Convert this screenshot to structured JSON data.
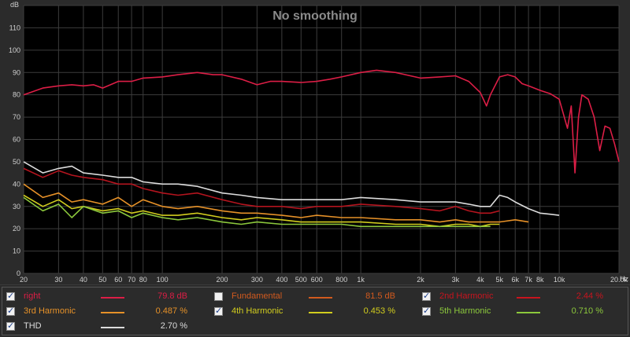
{
  "chart_data": {
    "type": "line",
    "title": "No smoothing",
    "xlabel": "Hz",
    "ylabel": "dB",
    "xscale": "log",
    "xlim": [
      20,
      20000
    ],
    "ylim": [
      0,
      120
    ],
    "grid": true,
    "legend": "bottom",
    "y_ticks": [
      0,
      10,
      20,
      30,
      40,
      50,
      60,
      70,
      80,
      90,
      100,
      110,
      120
    ],
    "y_tick_labels": [
      "0",
      "10",
      "20",
      "30",
      "40",
      "50",
      "60",
      "70",
      "80",
      "90",
      "100",
      "110",
      ""
    ],
    "x_ticks": [
      20,
      30,
      40,
      50,
      60,
      70,
      80,
      100,
      200,
      300,
      400,
      500,
      600,
      800,
      1000,
      2000,
      3000,
      4000,
      5000,
      6000,
      7000,
      8000,
      10000,
      20000
    ],
    "x_tick_labels": [
      "20",
      "30",
      "40",
      "50",
      "60",
      "70",
      "80",
      "100",
      "200",
      "300",
      "400",
      "500",
      "600",
      "800",
      "1k",
      "2k",
      "3k",
      "4k",
      "5k",
      "6k",
      "7k",
      "8k",
      "10k",
      "20.0k"
    ],
    "series": [
      {
        "name": "right",
        "color": "#dc1e46",
        "x": [
          20,
          25,
          30,
          35,
          40,
          45,
          50,
          60,
          70,
          80,
          100,
          120,
          150,
          180,
          200,
          250,
          300,
          350,
          400,
          500,
          600,
          700,
          800,
          1000,
          1200,
          1500,
          2000,
          2500,
          3000,
          3500,
          4000,
          4300,
          4500,
          5000,
          5500,
          6000,
          6500,
          7000,
          8000,
          9000,
          10000,
          11000,
          11500,
          12000,
          12500,
          13000,
          14000,
          15000,
          16000,
          17000,
          18000,
          19000,
          20000
        ],
        "y": [
          80,
          83,
          84,
          84.5,
          84,
          84.5,
          83,
          86,
          86,
          87.5,
          88,
          89,
          90,
          89,
          89,
          87,
          84.5,
          86,
          86,
          85.5,
          86,
          87,
          88,
          90,
          91,
          90,
          87.5,
          88,
          88.5,
          86,
          81,
          75,
          80,
          88,
          89,
          88,
          85,
          84,
          82,
          80.5,
          78,
          65,
          75,
          45,
          70,
          80,
          78,
          70,
          55,
          66,
          65,
          58,
          50
        ]
      },
      {
        "name": "2nd Harmonic",
        "color": "#b4141e",
        "x": [
          20,
          25,
          30,
          35,
          40,
          50,
          60,
          70,
          80,
          100,
          120,
          150,
          200,
          250,
          300,
          400,
          500,
          600,
          800,
          1000,
          1500,
          2000,
          2500,
          3000,
          3500,
          4000,
          4500,
          5000
        ],
        "y": [
          47,
          43,
          46,
          44,
          43,
          42,
          40,
          40,
          38,
          36,
          35,
          36,
          33,
          31,
          30,
          30,
          29,
          30,
          30,
          31,
          30,
          29,
          28,
          30,
          28,
          27,
          27,
          28
        ]
      },
      {
        "name": "THD",
        "color": "#dcdcdc",
        "x": [
          20,
          25,
          30,
          35,
          40,
          50,
          60,
          70,
          80,
          100,
          120,
          150,
          200,
          250,
          300,
          400,
          500,
          600,
          800,
          1000,
          1500,
          2000,
          2500,
          3000,
          3500,
          4000,
          4500,
          5000,
          5500,
          6000,
          7000,
          8000,
          9000,
          10000
        ],
        "y": [
          50,
          45,
          47,
          48,
          45,
          44,
          43,
          43,
          41,
          40,
          40,
          39,
          36,
          35,
          34,
          33,
          33,
          33,
          33,
          34,
          33,
          32,
          32,
          32,
          31,
          30,
          30,
          35,
          34,
          32,
          29,
          27,
          26.5,
          26
        ]
      },
      {
        "name": "3rd Harmonic",
        "color": "#e69128",
        "x": [
          20,
          25,
          30,
          35,
          40,
          50,
          60,
          70,
          80,
          100,
          120,
          150,
          200,
          250,
          300,
          400,
          500,
          600,
          800,
          1000,
          1500,
          2000,
          2500,
          3000,
          3500,
          4000,
          5000,
          6000,
          7000
        ],
        "y": [
          40,
          34,
          36,
          32,
          33,
          31,
          34,
          30,
          33,
          30,
          29,
          30,
          28,
          27,
          27,
          26,
          25,
          26,
          25,
          25,
          24,
          24,
          23,
          24,
          23,
          23,
          23,
          24,
          23
        ]
      },
      {
        "name": "4th Harmonic",
        "color": "#d2cd1e",
        "x": [
          20,
          25,
          30,
          35,
          40,
          50,
          60,
          70,
          80,
          100,
          120,
          150,
          200,
          250,
          300,
          400,
          500,
          600,
          800,
          1000,
          1500,
          2000,
          2500,
          3000,
          3500,
          4000,
          4500,
          5000
        ],
        "y": [
          35,
          30,
          33,
          29,
          30,
          28,
          29,
          27,
          28,
          26,
          26,
          27,
          25,
          24,
          25,
          24,
          23,
          23,
          23,
          23,
          22,
          22,
          21,
          22,
          22,
          21,
          22,
          22
        ]
      },
      {
        "name": "5th Harmonic",
        "color": "#8cc83c",
        "x": [
          20,
          25,
          30,
          35,
          40,
          50,
          60,
          70,
          80,
          100,
          120,
          150,
          200,
          250,
          300,
          400,
          500,
          600,
          800,
          1000,
          1500,
          2000,
          2500,
          3000,
          3500,
          4000,
          4500
        ],
        "y": [
          34,
          28,
          31,
          25,
          30,
          27,
          28,
          25,
          27,
          25,
          24,
          25,
          23,
          22,
          23,
          22,
          22,
          22,
          22,
          21,
          21,
          21,
          21,
          21,
          21,
          21,
          21
        ]
      }
    ]
  },
  "legend_items": [
    {
      "label": "right",
      "value": "79.8 dB",
      "color": "#dc1e46",
      "checked": true
    },
    {
      "label": "Fundamental",
      "value": "81.5 dB",
      "color": "#d25a1e",
      "checked": false
    },
    {
      "label": "2nd Harmonic",
      "value": "2.44 %",
      "color": "#c8141e",
      "checked": true
    },
    {
      "label": "3rd Harmonic",
      "value": "0.487 %",
      "color": "#e69128",
      "checked": true
    },
    {
      "label": "4th Harmonic",
      "value": "0.453 %",
      "color": "#d2cd1e",
      "checked": true
    },
    {
      "label": "5th Harmonic",
      "value": "0.710 %",
      "color": "#8cc83c",
      "checked": true
    },
    {
      "label": "THD",
      "value": "2.70 %",
      "color": "#dcdcdc",
      "checked": true
    }
  ]
}
